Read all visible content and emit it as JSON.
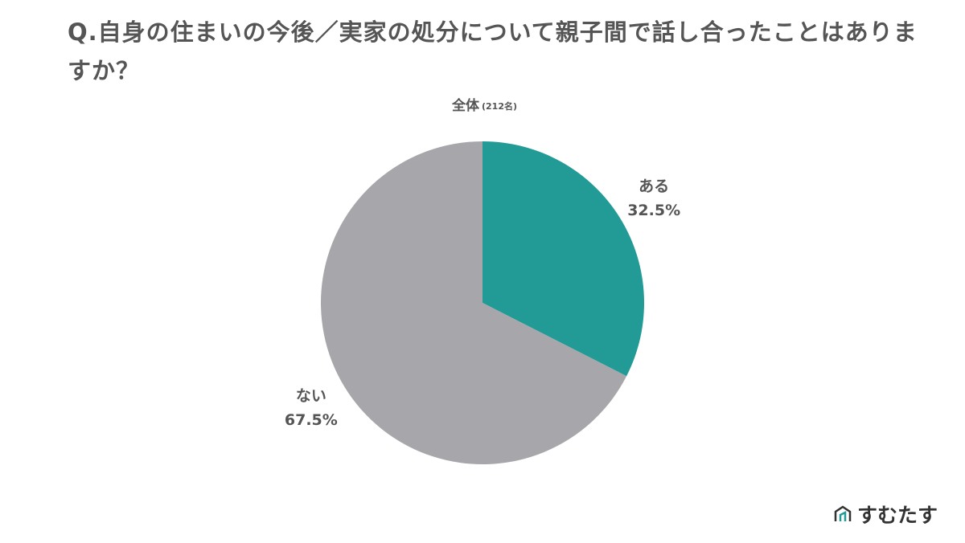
{
  "chart_data": {
    "type": "pie",
    "title": "Q.自身の住まいの今後／実家の処分について親子間で話し合ったことはありますか？",
    "subtitle": "全体",
    "sample_size": "(212名)",
    "categories": [
      "ある",
      "ない"
    ],
    "values": [
      32.5,
      67.5
    ],
    "value_labels": [
      "32.5%",
      "67.5%"
    ],
    "colors": [
      "#229a96",
      "#a7a6aa"
    ]
  },
  "brand": "すむたす"
}
